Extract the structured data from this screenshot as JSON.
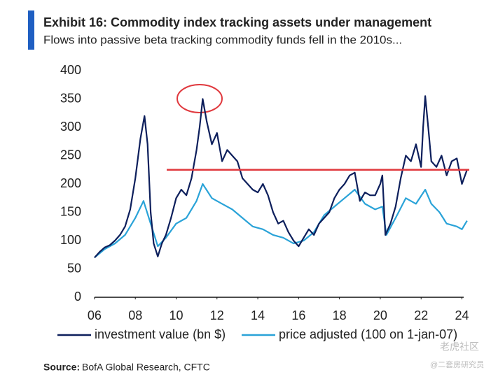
{
  "chart_data": {
    "type": "line",
    "title": "Exhibit 16: Commodity index tracking assets under management",
    "subtitle": "Flows into passive beta tracking commodity funds fell in the 2010s...",
    "source_label": "Source:",
    "source": "BofA Global Research, CFTC",
    "watermarks": [
      "老虎社区",
      "@二套房研究员"
    ],
    "xlim": [
      2005.9,
      2024.6
    ],
    "xticks": [
      {
        "value": 2006,
        "label": "06"
      },
      {
        "value": 2008,
        "label": "08"
      },
      {
        "value": 2010,
        "label": "10"
      },
      {
        "value": 2012,
        "label": "12"
      },
      {
        "value": 2014,
        "label": "14"
      },
      {
        "value": 2016,
        "label": "16"
      },
      {
        "value": 2018,
        "label": "18"
      },
      {
        "value": 2020,
        "label": "20"
      },
      {
        "value": 2022,
        "label": "22"
      },
      {
        "value": 2024,
        "label": "24"
      }
    ],
    "ylim": [
      0,
      400
    ],
    "yticks": [
      0,
      50,
      100,
      150,
      200,
      250,
      300,
      350,
      400
    ],
    "grid": false,
    "legend": "bottom",
    "reference_line": {
      "value": 225,
      "color": "#e0393e"
    },
    "series": [
      {
        "name": "investment value (bn $)",
        "color": "#0d1f5c",
        "x": [
          2006,
          2006.25,
          2006.5,
          2006.75,
          2007,
          2007.25,
          2007.5,
          2007.75,
          2008,
          2008.25,
          2008.45,
          2008.6,
          2008.75,
          2008.9,
          2009.1,
          2009.3,
          2009.5,
          2009.75,
          2010,
          2010.25,
          2010.5,
          2010.75,
          2011,
          2011.15,
          2011.3,
          2011.5,
          2011.75,
          2012,
          2012.25,
          2012.5,
          2012.75,
          2013,
          2013.25,
          2013.5,
          2013.75,
          2014,
          2014.25,
          2014.5,
          2014.75,
          2015,
          2015.25,
          2015.5,
          2015.75,
          2016,
          2016.25,
          2016.5,
          2016.75,
          2017,
          2017.25,
          2017.5,
          2017.75,
          2018,
          2018.25,
          2018.5,
          2018.75,
          2019,
          2019.25,
          2019.5,
          2019.75,
          2020,
          2020.1,
          2020.25,
          2020.5,
          2020.75,
          2021,
          2021.25,
          2021.5,
          2021.75,
          2022,
          2022.1,
          2022.2,
          2022.35,
          2022.5,
          2022.75,
          2023,
          2023.25,
          2023.5,
          2023.75,
          2024,
          2024.25
        ],
        "values": [
          70,
          80,
          88,
          92,
          100,
          110,
          125,
          155,
          210,
          280,
          320,
          270,
          150,
          95,
          72,
          95,
          110,
          140,
          175,
          190,
          180,
          210,
          260,
          300,
          350,
          310,
          270,
          290,
          240,
          260,
          250,
          240,
          210,
          200,
          190,
          185,
          200,
          180,
          150,
          130,
          135,
          115,
          100,
          90,
          105,
          120,
          110,
          130,
          140,
          150,
          175,
          190,
          200,
          215,
          220,
          170,
          185,
          180,
          180,
          200,
          215,
          110,
          130,
          160,
          210,
          250,
          240,
          270,
          230,
          300,
          355,
          300,
          240,
          230,
          250,
          215,
          240,
          245,
          200,
          225
        ]
      },
      {
        "name": "price adjusted (100 on 1-jan-07)",
        "color": "#2aa3d8",
        "x": [
          2006,
          2006.5,
          2007,
          2007.5,
          2008,
          2008.4,
          2008.75,
          2009.1,
          2009.5,
          2010,
          2010.5,
          2011,
          2011.3,
          2011.75,
          2012.25,
          2012.75,
          2013.25,
          2013.75,
          2014.25,
          2014.75,
          2015.25,
          2015.75,
          2016.25,
          2016.75,
          2017.25,
          2017.75,
          2018.25,
          2018.75,
          2019.25,
          2019.75,
          2020.1,
          2020.3,
          2020.75,
          2021.25,
          2021.75,
          2022.2,
          2022.5,
          2022.9,
          2023.25,
          2023.75,
          2024,
          2024.25
        ],
        "values": [
          70,
          85,
          95,
          110,
          140,
          170,
          130,
          90,
          105,
          130,
          140,
          170,
          200,
          175,
          165,
          155,
          140,
          125,
          120,
          110,
          105,
          95,
          100,
          115,
          145,
          160,
          175,
          190,
          165,
          155,
          160,
          110,
          140,
          175,
          165,
          190,
          165,
          150,
          130,
          125,
          120,
          135
        ]
      }
    ]
  }
}
